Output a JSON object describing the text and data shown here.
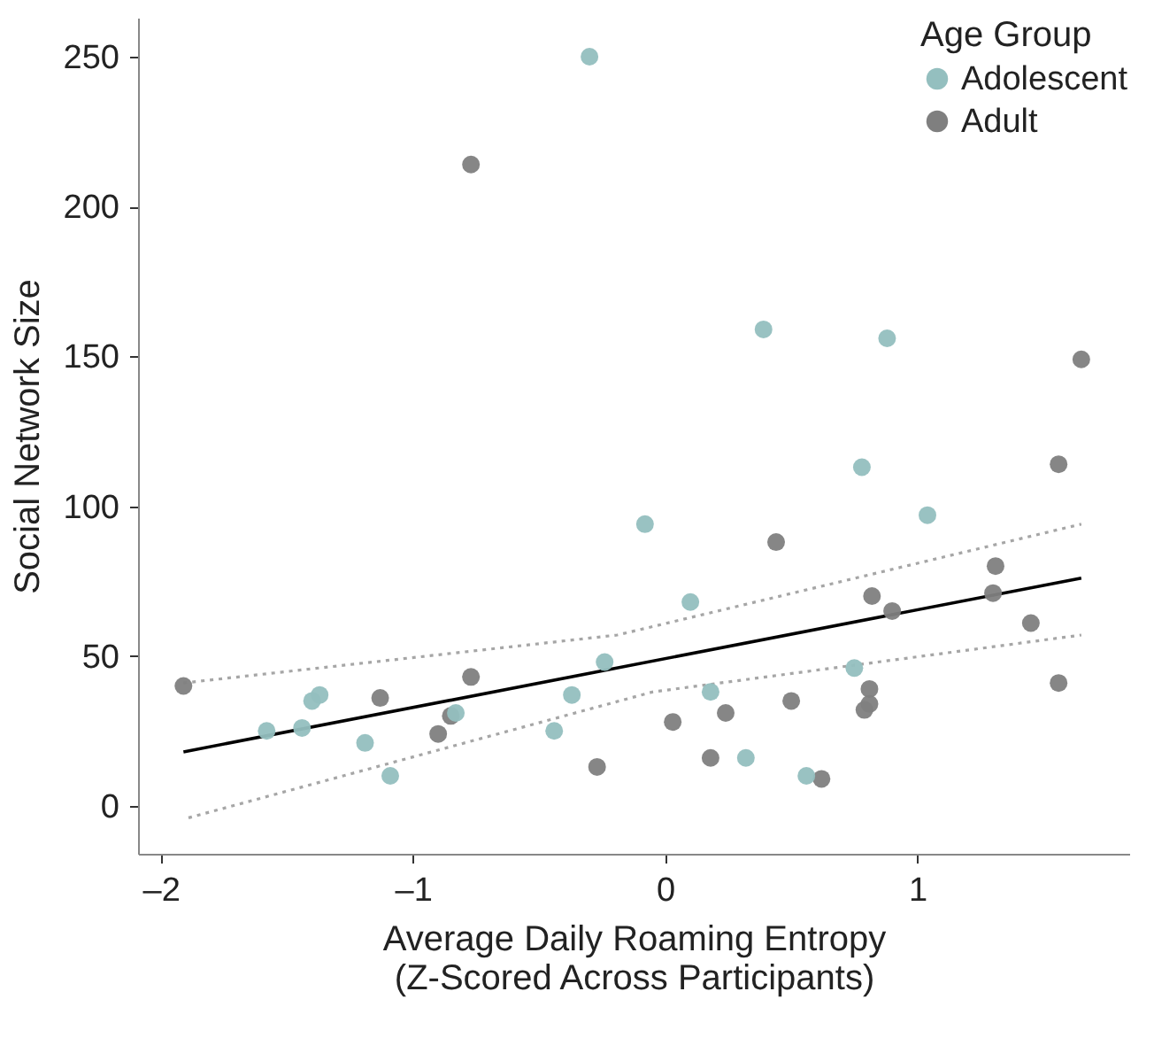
{
  "chart_data": {
    "type": "scatter",
    "xlabel": "Average Daily Roaming Entropy\n(Z-Scored Across Participants)",
    "ylabel": "Social Network Size",
    "legend_title": "Age Group",
    "legend": "top right",
    "grid": false,
    "marker": "circle",
    "xlim": [
      -2.09,
      1.84
    ],
    "ylim": [
      -16,
      263
    ],
    "xticks": [
      {
        "value": -2,
        "label": "–2"
      },
      {
        "value": -1,
        "label": "–1"
      },
      0,
      1
    ],
    "yticks": [
      0,
      50,
      100,
      150,
      200,
      250
    ],
    "series": [
      {
        "name": "Adolescent",
        "color": "#94bfbf",
        "x": [
          -0.3,
          0.39,
          0.88,
          0.78,
          -0.08,
          -1.37,
          -1.4,
          -1.58,
          -1.44,
          -1.19,
          -1.09,
          -0.83,
          -0.44,
          -0.37,
          -0.24,
          1.04,
          0.1,
          0.75,
          0.18,
          0.32,
          0.56
        ],
        "values": [
          250,
          159,
          156,
          113,
          94,
          37,
          35,
          25,
          26,
          21,
          10,
          31,
          25,
          37,
          48,
          97,
          68,
          46,
          38,
          16,
          10
        ]
      },
      {
        "name": "Adult",
        "color": "#7f7f7f",
        "x": [
          -0.77,
          1.65,
          1.56,
          -1.91,
          -1.13,
          -0.77,
          -0.85,
          -0.9,
          -0.27,
          0.44,
          1.31,
          1.3,
          0.82,
          0.9,
          1.45,
          0.81,
          0.81,
          0.79,
          1.56,
          0.5,
          0.03,
          0.24,
          0.18,
          0.62
        ],
        "values": [
          214,
          149,
          114,
          40,
          36,
          43,
          30,
          24,
          13,
          88,
          80,
          71,
          70,
          65,
          61,
          39,
          34,
          32,
          41,
          35,
          28,
          31,
          16,
          9
        ]
      },
      {
        "type": "line",
        "color": "#000000",
        "line_style": "solid",
        "marker": "none",
        "x": [
          -1.91,
          1.65
        ],
        "values": [
          18,
          76
        ]
      },
      {
        "type": "line",
        "color": "#a6a6a6",
        "line_style": "dotted",
        "marker": "none",
        "x": [
          -1.91,
          -0.19,
          1.65
        ],
        "values": [
          41,
          57,
          94
        ]
      },
      {
        "type": "line",
        "color": "#a6a6a6",
        "line_style": "dotted",
        "marker": "none",
        "x": [
          -1.89,
          -0.05,
          1.65
        ],
        "values": [
          -4,
          38,
          57
        ]
      }
    ]
  }
}
